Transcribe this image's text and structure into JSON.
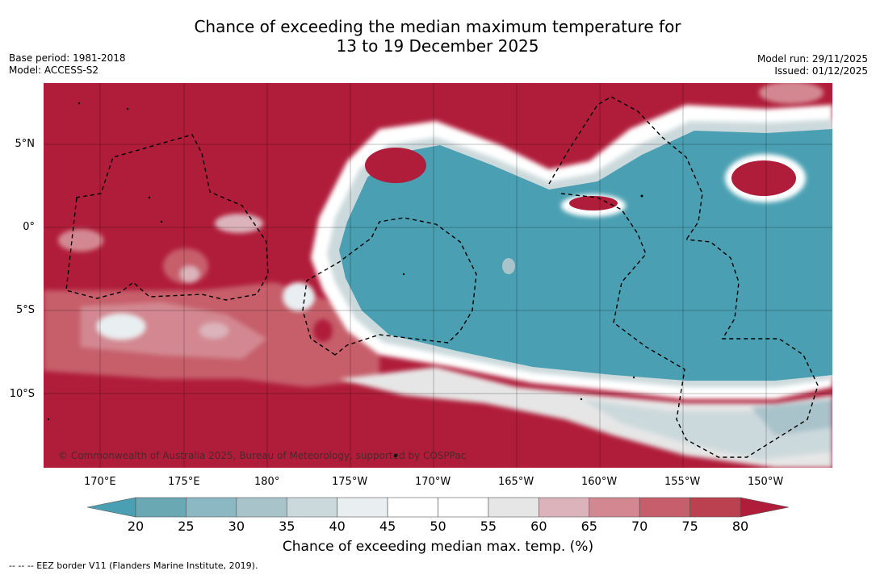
{
  "title": {
    "line1": "Chance of exceeding the median maximum temperature for",
    "line2": "13 to 19 December 2025"
  },
  "meta_left": {
    "base_period": "Base period: 1981-2018",
    "model": "Model: ACCESS-S2"
  },
  "meta_right": {
    "model_run": "Model run: 29/11/2025",
    "issued": "Issued: 01/12/2025"
  },
  "map": {
    "lat_labels": [
      "5°N",
      "0°",
      "5°S",
      "10°S"
    ],
    "lon_labels": [
      "170°E",
      "175°E",
      "180°",
      "175°W",
      "170°W",
      "165°W",
      "160°W",
      "155°W",
      "150°W"
    ],
    "copyright": "© Commonwealth of Australia 2025, Bureau of Meteorology, supported by COSPPac"
  },
  "colorbar": {
    "ticks": [
      "20",
      "25",
      "30",
      "35",
      "40",
      "45",
      "50",
      "55",
      "60",
      "65",
      "70",
      "75",
      "80"
    ],
    "colors": [
      "#6aa8b4",
      "#8cb8c4",
      "#a9c3ca",
      "#ccd9dc",
      "#e9eef1",
      "#ffffff",
      "#ffffff",
      "#e6e6e6",
      "#dcb3bb",
      "#d38891",
      "#c65f6b",
      "#bb4050"
    ],
    "under_color": "#4aa0b2",
    "over_color": "#b01d3a",
    "title": "Chance of exceeding median max. temp. (%)"
  },
  "legend_note": "--  --  -- EEZ border V11 (Flanders Marine Institute, 2019)."
}
